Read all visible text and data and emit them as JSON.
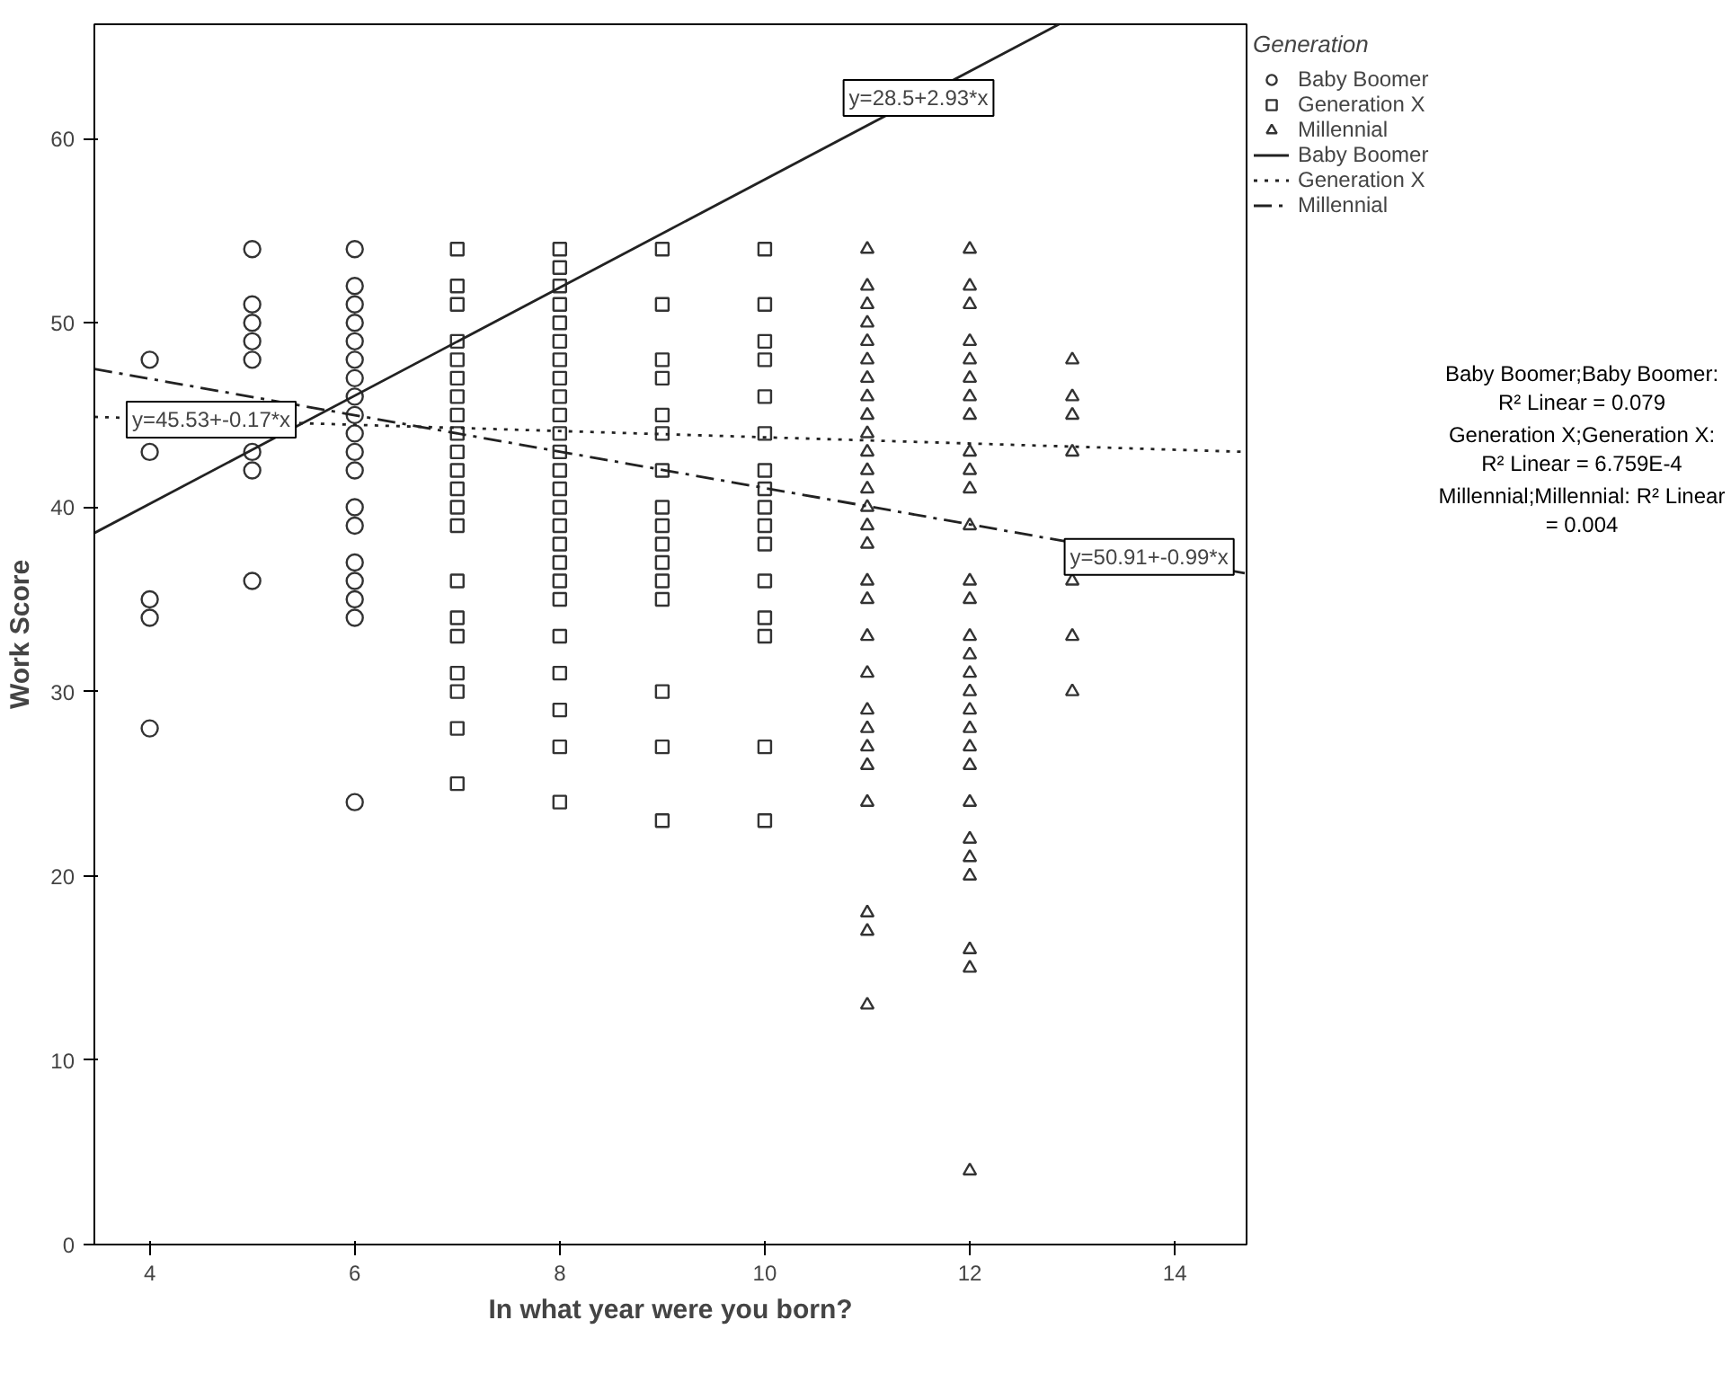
{
  "chart_data": {
    "type": "scatter",
    "xlabel": "In what year were you born?",
    "ylabel": "Work Score",
    "legend_title": "Generation",
    "legend": "right",
    "grid": false,
    "xlim": [
      3.46,
      14.7
    ],
    "ylim": [
      0,
      66.2
    ],
    "xticks": [
      4,
      6,
      8,
      10,
      12,
      14
    ],
    "yticks": [
      0,
      10,
      20,
      30,
      40,
      50,
      60
    ],
    "series": [
      {
        "name": "Baby Boomer",
        "marker": "circle",
        "color": "#333333",
        "x": [
          4,
          4,
          4,
          4,
          4,
          5,
          5,
          5,
          5,
          5,
          5,
          5,
          5,
          6,
          6,
          6,
          6,
          6,
          6,
          6,
          6,
          6,
          6,
          6,
          6,
          6,
          6,
          6,
          6,
          6,
          6,
          6
        ],
        "values": [
          48,
          43,
          35,
          34,
          28,
          54,
          51,
          50,
          49,
          48,
          43,
          42,
          36,
          54,
          52,
          51,
          50,
          49,
          48,
          47,
          46,
          45,
          44,
          43,
          42,
          40,
          39,
          37,
          36,
          35,
          34,
          24
        ]
      },
      {
        "name": "Generation X",
        "marker": "square",
        "color": "#333333",
        "x": [
          7,
          7,
          7,
          7,
          7,
          7,
          7,
          7,
          7,
          7,
          7,
          7,
          7,
          7,
          7,
          7,
          7,
          7,
          7,
          7,
          7,
          8,
          8,
          8,
          8,
          8,
          8,
          8,
          8,
          8,
          8,
          8,
          8,
          8,
          8,
          8,
          8,
          8,
          8,
          8,
          8,
          8,
          8,
          8,
          8,
          8,
          9,
          9,
          9,
          9,
          9,
          9,
          9,
          9,
          9,
          9,
          9,
          9,
          9,
          9,
          9,
          9,
          10,
          10,
          10,
          10,
          10,
          10,
          10,
          10,
          10,
          10,
          10,
          10,
          10,
          10,
          10,
          10
        ],
        "values": [
          54,
          52,
          51,
          49,
          48,
          47,
          46,
          45,
          44,
          43,
          42,
          41,
          40,
          39,
          36,
          34,
          33,
          31,
          30,
          28,
          25,
          54,
          53,
          52,
          51,
          50,
          49,
          48,
          47,
          46,
          45,
          44,
          43,
          42,
          41,
          40,
          39,
          38,
          37,
          36,
          35,
          33,
          31,
          29,
          27,
          24,
          54,
          51,
          48,
          47,
          45,
          44,
          42,
          40,
          39,
          38,
          37,
          36,
          35,
          30,
          27,
          23,
          54,
          51,
          49,
          48,
          46,
          44,
          42,
          41,
          40,
          39,
          38,
          36,
          34,
          33,
          27,
          23
        ]
      },
      {
        "name": "Millennial",
        "marker": "triangle",
        "color": "#333333",
        "x": [
          11,
          11,
          11,
          11,
          11,
          11,
          11,
          11,
          11,
          11,
          11,
          11,
          11,
          11,
          11,
          11,
          11,
          11,
          11,
          11,
          11,
          11,
          11,
          11,
          11,
          11,
          11,
          11,
          12,
          12,
          12,
          12,
          12,
          12,
          12,
          12,
          12,
          12,
          12,
          12,
          12,
          12,
          12,
          12,
          12,
          12,
          12,
          12,
          12,
          12,
          12,
          12,
          12,
          12,
          12,
          12,
          12,
          13,
          13,
          13,
          13,
          13,
          13,
          13
        ],
        "values": [
          54,
          52,
          51,
          50,
          49,
          48,
          47,
          46,
          45,
          44,
          43,
          42,
          41,
          40,
          39,
          38,
          36,
          35,
          33,
          31,
          29,
          28,
          27,
          26,
          24,
          18,
          17,
          13,
          54,
          52,
          51,
          49,
          48,
          47,
          46,
          45,
          43,
          42,
          41,
          39,
          36,
          35,
          33,
          32,
          31,
          30,
          29,
          28,
          27,
          26,
          24,
          22,
          21,
          20,
          16,
          15,
          4,
          48,
          46,
          45,
          43,
          36,
          33,
          30
        ]
      },
      {
        "name": "Baby Boomer",
        "type": "line",
        "line_style": "solid",
        "color": "#222222",
        "x": [
          3.46,
          12.87
        ],
        "values": [
          38.6,
          66.2
        ]
      },
      {
        "name": "Generation X",
        "type": "line",
        "line_style": "dotted",
        "color": "#222222",
        "x": [
          3.46,
          14.7
        ],
        "values": [
          44.9,
          43.0
        ]
      },
      {
        "name": "Millennial",
        "type": "line",
        "line_style": "dashdot",
        "color": "#222222",
        "x": [
          3.46,
          14.7
        ],
        "values": [
          47.5,
          36.4
        ]
      }
    ],
    "annotations": [
      {
        "text": "y=28.5+2.93*x",
        "x": 11.5,
        "y": 62.2
      },
      {
        "text": "y=45.53+-0.17*x",
        "x": 4.6,
        "y": 44.75
      },
      {
        "text": "y=50.91+-0.99*x",
        "x": 13.75,
        "y": 37.3
      },
      "Baby Boomer;Baby Boomer: R² Linear = 0.079",
      "Generation X;Generation X: R² Linear = 6.759E-4",
      "Millennial;Millennial: R² Linear = 0.004"
    ]
  }
}
